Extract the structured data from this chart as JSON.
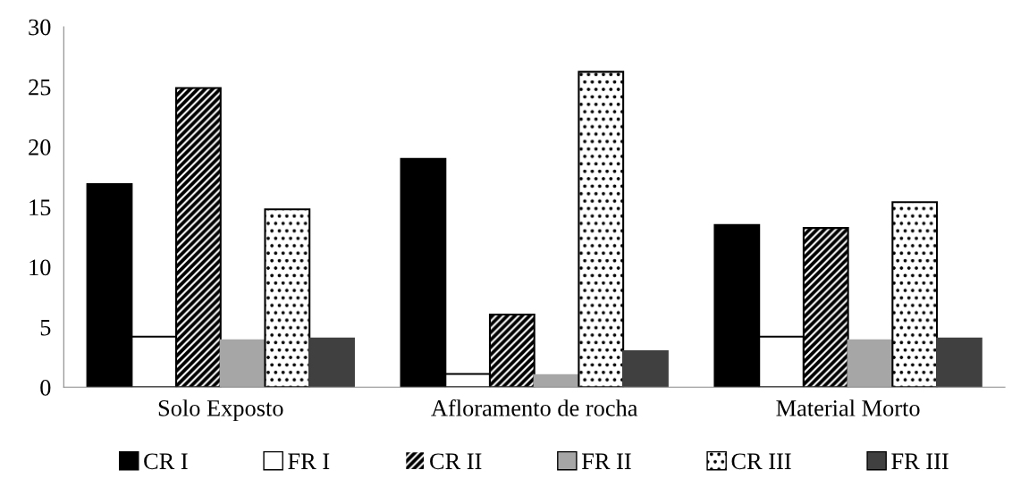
{
  "chart_data": {
    "type": "bar",
    "categories": [
      "Solo Exposto",
      "Afloramento de rocha",
      "Material Morto"
    ],
    "series": [
      {
        "name": "CR I",
        "color": "#000000",
        "values": [
          16.9,
          19.0,
          13.5
        ]
      },
      {
        "name": "FR I",
        "color": "#ffffff",
        "values": [
          4.2,
          1.1,
          4.2
        ]
      },
      {
        "name": "CR II",
        "color": "#000000",
        "values": [
          24.9,
          6.05,
          13.25
        ]
      },
      {
        "name": "FR II",
        "color": "#a6a6a6",
        "values": [
          3.9,
          1.0,
          3.9
        ]
      },
      {
        "name": "CR III",
        "color": "#ffffff",
        "values": [
          14.8,
          26.25,
          15.4
        ]
      },
      {
        "name": "FR III",
        "color": "#404040",
        "values": [
          4.05,
          3.0,
          4.05
        ]
      }
    ],
    "ylim": [
      0,
      30
    ],
    "yticks": [
      0,
      5,
      10,
      15,
      20,
      25,
      30
    ],
    "grid": false,
    "legend": "bottom"
  }
}
